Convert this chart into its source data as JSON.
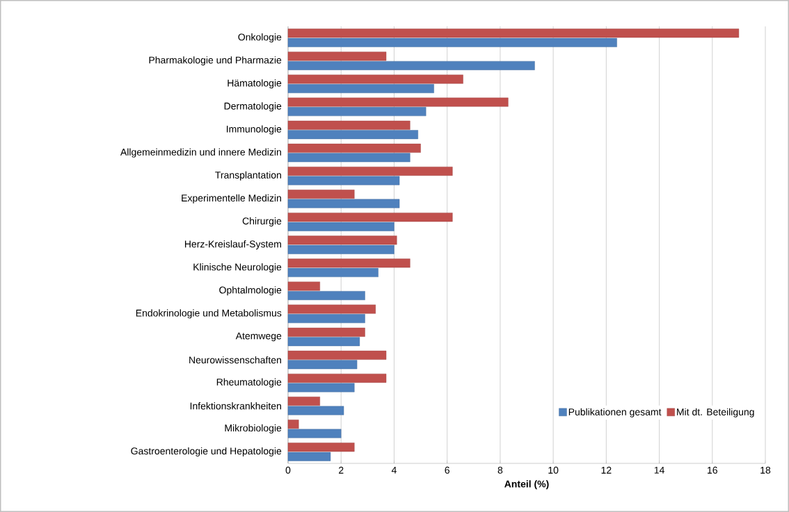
{
  "chart_data": {
    "type": "bar",
    "orientation": "horizontal",
    "xlabel": "Anteil (%)",
    "categories": [
      "Onkologie",
      "Pharmakologie und Pharmazie",
      "Hämatologie",
      "Dermatologie",
      "Immunologie",
      "Allgemeinmedizin und innere Medizin",
      "Transplantation",
      "Experimentelle Medizin",
      "Chirurgie",
      "Herz-Kreislauf-System",
      "Klinische Neurologie",
      "Ophtalmologie",
      "Endokrinologie und Metabolismus",
      "Atemwege",
      "Neurowissenschaften",
      "Rheumatologie",
      "Infektionskrankheiten",
      "Mikrobiologie",
      "Gastroenterologie und Hepatologie"
    ],
    "series": [
      {
        "name": "Publikationen gesamt",
        "color": "#4f81bd",
        "values": [
          12.4,
          9.3,
          5.5,
          5.2,
          4.9,
          4.6,
          4.2,
          4.2,
          4.0,
          4.0,
          3.4,
          2.9,
          2.9,
          2.7,
          2.6,
          2.5,
          2.1,
          2.0,
          1.6
        ]
      },
      {
        "name": "Mit dt. Beteiligung",
        "color": "#c0504d",
        "values": [
          17.0,
          3.7,
          6.6,
          8.3,
          4.6,
          5.0,
          6.2,
          2.5,
          6.2,
          4.1,
          4.6,
          1.2,
          3.3,
          2.9,
          3.7,
          3.7,
          1.2,
          0.4,
          2.5
        ]
      }
    ],
    "xlim": [
      0,
      18
    ],
    "xticks": [
      0,
      2,
      4,
      6,
      8,
      10,
      12,
      14,
      16,
      18
    ],
    "grid": "x",
    "legend": "bottom right"
  }
}
